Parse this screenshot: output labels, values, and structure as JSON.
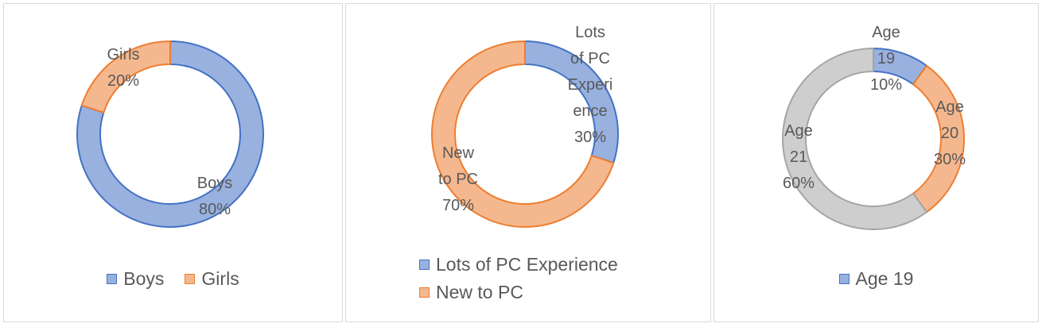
{
  "chart_data": [
    {
      "type": "pie",
      "variant": "donut",
      "categories": [
        "Boys",
        "Girls"
      ],
      "values": [
        80,
        20
      ],
      "data_labels": [
        [
          "Boys",
          "80%"
        ],
        [
          "Girls",
          "20%"
        ]
      ],
      "colors": [
        "#4472C4",
        "#ED7D31"
      ],
      "legend": [
        "Boys",
        "Girls"
      ],
      "legend_position": "bottom"
    },
    {
      "type": "pie",
      "variant": "donut",
      "categories": [
        "Lots of PC Experience",
        "New to PC"
      ],
      "values": [
        30,
        70
      ],
      "data_labels": [
        [
          "Lots",
          "of PC",
          "Experi",
          "ence",
          "30%"
        ],
        [
          "New",
          "to PC",
          "70%"
        ]
      ],
      "colors": [
        "#4472C4",
        "#ED7D31"
      ],
      "legend": [
        "Lots of PC Experience",
        "New to PC"
      ],
      "legend_position": "bottom"
    },
    {
      "type": "pie",
      "variant": "donut",
      "categories": [
        "Age 19",
        "Age 20",
        "Age 21"
      ],
      "values": [
        10,
        30,
        60
      ],
      "data_labels": [
        [
          "Age",
          "19",
          "10%"
        ],
        [
          "Age",
          "20",
          "30%"
        ],
        [
          "Age",
          "21",
          "60%"
        ]
      ],
      "colors": [
        "#4472C4",
        "#ED7D31",
        "#A5A5A5"
      ],
      "legend": [
        "Age 19"
      ],
      "legend_position": "bottom"
    }
  ]
}
